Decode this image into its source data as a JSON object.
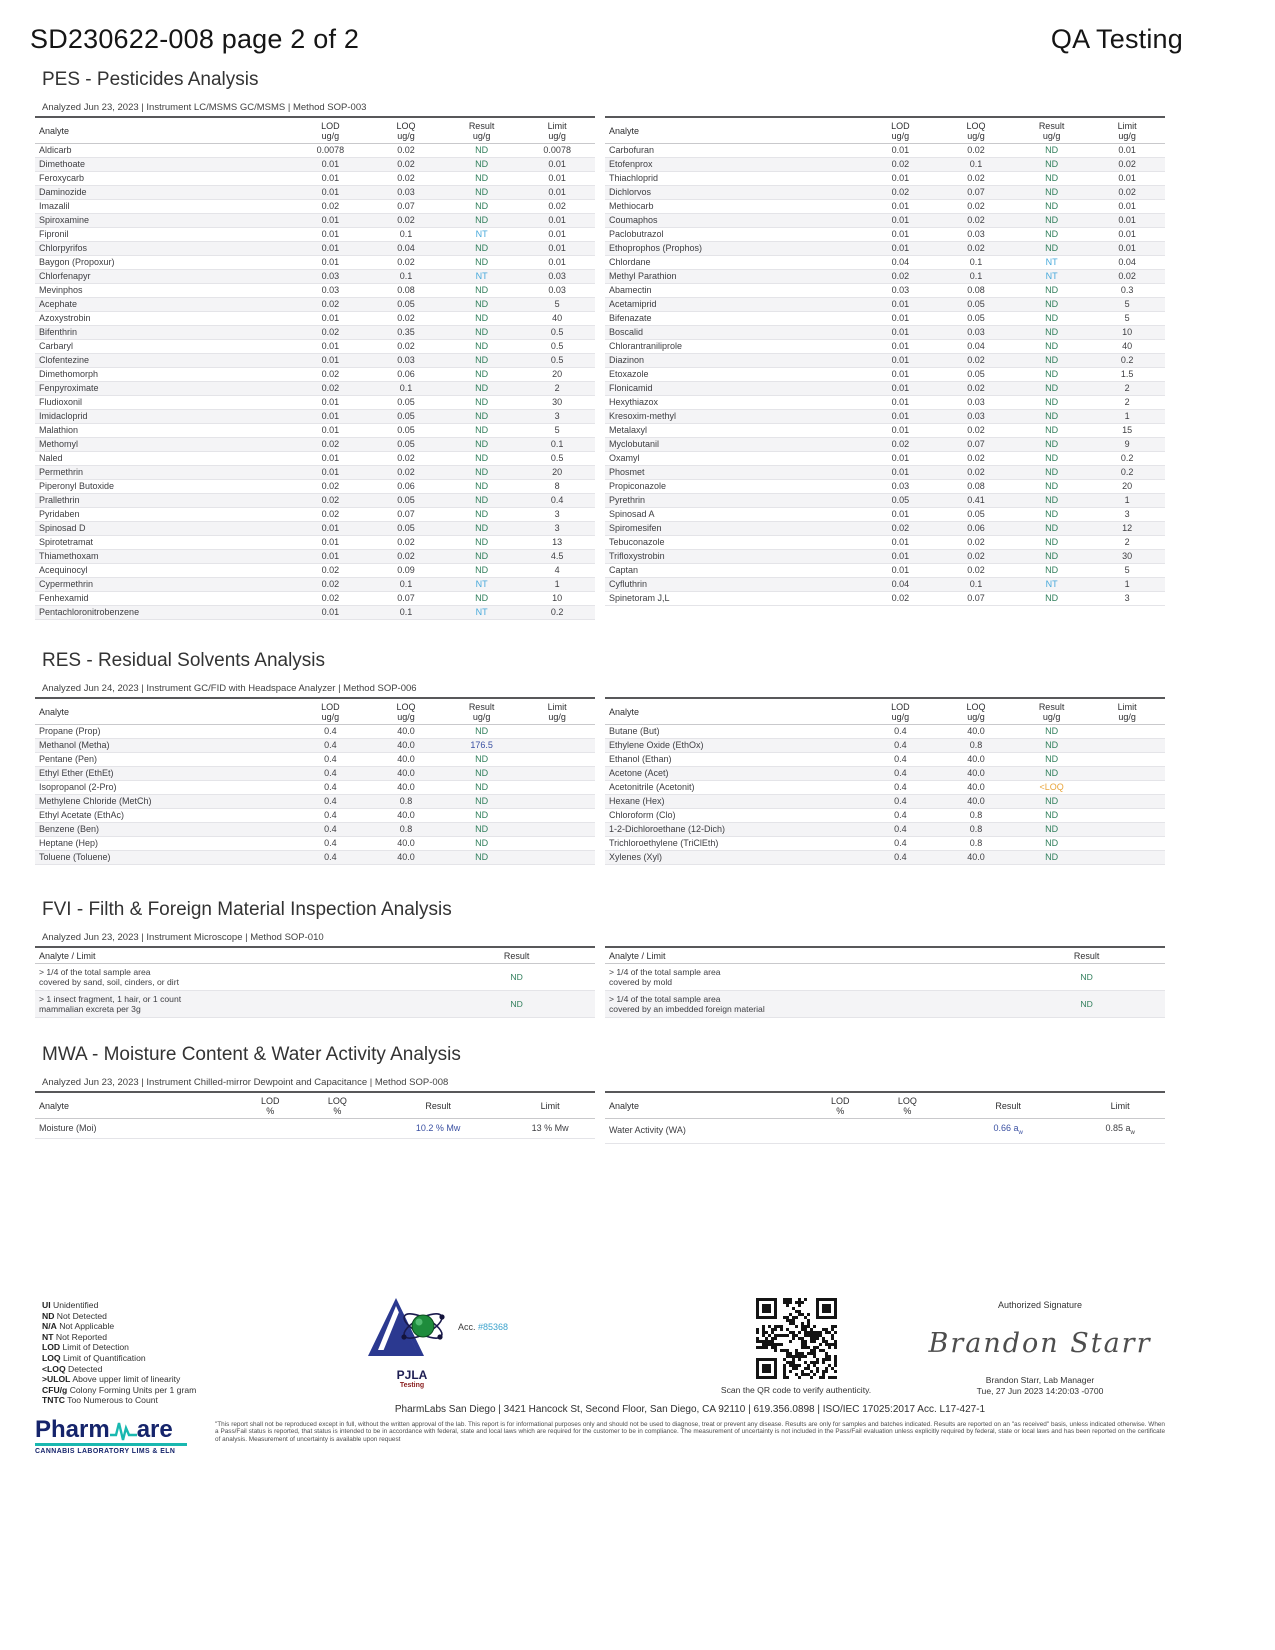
{
  "page": {
    "doc_title": "SD230622-008 page 2 of 2",
    "corner_title": "QA Testing"
  },
  "colors": {
    "nd_green": "#2F7E5B",
    "nt_blue": "#47A9DB",
    "value_blue": "#3A50A2",
    "loq_orange": "#E9A53C",
    "teal": "#19B8B0",
    "navy": "#15246B"
  },
  "pes": {
    "title": "PES - Pesticides Analysis",
    "meta": "Analyzed Jun 23, 2023  |  Instrument LC/MSMS GC/MSMS  | Method  SOP-003",
    "headers": {
      "analyte": "Analyte",
      "cols": [
        {
          "label": "LOD",
          "unit": "ug/g"
        },
        {
          "label": "LOQ",
          "unit": "ug/g"
        },
        {
          "label": "Result",
          "unit": "ug/g"
        },
        {
          "label": "Limit",
          "unit": "ug/g"
        }
      ]
    },
    "left": [
      [
        "Aldicarb",
        "0.0078",
        "0.02",
        "ND",
        "0.0078"
      ],
      [
        "Dimethoate",
        "0.01",
        "0.02",
        "ND",
        "0.01"
      ],
      [
        "Feroxycarb",
        "0.01",
        "0.02",
        "ND",
        "0.01"
      ],
      [
        "Daminozide",
        "0.01",
        "0.03",
        "ND",
        "0.01"
      ],
      [
        "Imazalil",
        "0.02",
        "0.07",
        "ND",
        "0.02"
      ],
      [
        "Spiroxamine",
        "0.01",
        "0.02",
        "ND",
        "0.01"
      ],
      [
        "Fipronil",
        "0.01",
        "0.1",
        "NT",
        "0.01"
      ],
      [
        "Chlorpyrifos",
        "0.01",
        "0.04",
        "ND",
        "0.01"
      ],
      [
        "Baygon (Propoxur)",
        "0.01",
        "0.02",
        "ND",
        "0.01"
      ],
      [
        "Chlorfenapyr",
        "0.03",
        "0.1",
        "NT",
        "0.03"
      ],
      [
        "Mevinphos",
        "0.03",
        "0.08",
        "ND",
        "0.03"
      ],
      [
        "Acephate",
        "0.02",
        "0.05",
        "ND",
        "5"
      ],
      [
        "Azoxystrobin",
        "0.01",
        "0.02",
        "ND",
        "40"
      ],
      [
        "Bifenthrin",
        "0.02",
        "0.35",
        "ND",
        "0.5"
      ],
      [
        "Carbaryl",
        "0.01",
        "0.02",
        "ND",
        "0.5"
      ],
      [
        "Clofentezine",
        "0.01",
        "0.03",
        "ND",
        "0.5"
      ],
      [
        "Dimethomorph",
        "0.02",
        "0.06",
        "ND",
        "20"
      ],
      [
        "Fenpyroximate",
        "0.02",
        "0.1",
        "ND",
        "2"
      ],
      [
        "Fludioxonil",
        "0.01",
        "0.05",
        "ND",
        "30"
      ],
      [
        "Imidacloprid",
        "0.01",
        "0.05",
        "ND",
        "3"
      ],
      [
        "Malathion",
        "0.01",
        "0.05",
        "ND",
        "5"
      ],
      [
        "Methomyl",
        "0.02",
        "0.05",
        "ND",
        "0.1"
      ],
      [
        "Naled",
        "0.01",
        "0.02",
        "ND",
        "0.5"
      ],
      [
        "Permethrin",
        "0.01",
        "0.02",
        "ND",
        "20"
      ],
      [
        "Piperonyl Butoxide",
        "0.02",
        "0.06",
        "ND",
        "8"
      ],
      [
        "Prallethrin",
        "0.02",
        "0.05",
        "ND",
        "0.4"
      ],
      [
        "Pyridaben",
        "0.02",
        "0.07",
        "ND",
        "3"
      ],
      [
        "Spinosad D",
        "0.01",
        "0.05",
        "ND",
        "3"
      ],
      [
        "Spirotetramat",
        "0.01",
        "0.02",
        "ND",
        "13"
      ],
      [
        "Thiamethoxam",
        "0.01",
        "0.02",
        "ND",
        "4.5"
      ],
      [
        "Acequinocyl",
        "0.02",
        "0.09",
        "ND",
        "4"
      ],
      [
        "Cypermethrin",
        "0.02",
        "0.1",
        "NT",
        "1"
      ],
      [
        "Fenhexamid",
        "0.02",
        "0.07",
        "ND",
        "10"
      ],
      [
        "Pentachloronitrobenzene",
        "0.01",
        "0.1",
        "NT",
        "0.2"
      ]
    ],
    "right": [
      [
        "Carbofuran",
        "0.01",
        "0.02",
        "ND",
        "0.01"
      ],
      [
        "Etofenprox",
        "0.02",
        "0.1",
        "ND",
        "0.02"
      ],
      [
        "Thiachloprid",
        "0.01",
        "0.02",
        "ND",
        "0.01"
      ],
      [
        "Dichlorvos",
        "0.02",
        "0.07",
        "ND",
        "0.02"
      ],
      [
        "Methiocarb",
        "0.01",
        "0.02",
        "ND",
        "0.01"
      ],
      [
        "Coumaphos",
        "0.01",
        "0.02",
        "ND",
        "0.01"
      ],
      [
        "Paclobutrazol",
        "0.01",
        "0.03",
        "ND",
        "0.01"
      ],
      [
        "Ethoprophos (Prophos)",
        "0.01",
        "0.02",
        "ND",
        "0.01"
      ],
      [
        "Chlordane",
        "0.04",
        "0.1",
        "NT",
        "0.04"
      ],
      [
        "Methyl Parathion",
        "0.02",
        "0.1",
        "NT",
        "0.02"
      ],
      [
        "Abamectin",
        "0.03",
        "0.08",
        "ND",
        "0.3"
      ],
      [
        "Acetamiprid",
        "0.01",
        "0.05",
        "ND",
        "5"
      ],
      [
        "Bifenazate",
        "0.01",
        "0.05",
        "ND",
        "5"
      ],
      [
        "Boscalid",
        "0.01",
        "0.03",
        "ND",
        "10"
      ],
      [
        "Chlorantraniliprole",
        "0.01",
        "0.04",
        "ND",
        "40"
      ],
      [
        "Diazinon",
        "0.01",
        "0.02",
        "ND",
        "0.2"
      ],
      [
        "Etoxazole",
        "0.01",
        "0.05",
        "ND",
        "1.5"
      ],
      [
        "Flonicamid",
        "0.01",
        "0.02",
        "ND",
        "2"
      ],
      [
        "Hexythiazox",
        "0.01",
        "0.03",
        "ND",
        "2"
      ],
      [
        "Kresoxim-methyl",
        "0.01",
        "0.03",
        "ND",
        "1"
      ],
      [
        "Metalaxyl",
        "0.01",
        "0.02",
        "ND",
        "15"
      ],
      [
        "Myclobutanil",
        "0.02",
        "0.07",
        "ND",
        "9"
      ],
      [
        "Oxamyl",
        "0.01",
        "0.02",
        "ND",
        "0.2"
      ],
      [
        "Phosmet",
        "0.01",
        "0.02",
        "ND",
        "0.2"
      ],
      [
        "Propiconazole",
        "0.03",
        "0.08",
        "ND",
        "20"
      ],
      [
        "Pyrethrin",
        "0.05",
        "0.41",
        "ND",
        "1"
      ],
      [
        "Spinosad A",
        "0.01",
        "0.05",
        "ND",
        "3"
      ],
      [
        "Spiromesifen",
        "0.02",
        "0.06",
        "ND",
        "12"
      ],
      [
        "Tebuconazole",
        "0.01",
        "0.02",
        "ND",
        "2"
      ],
      [
        "Trifloxystrobin",
        "0.01",
        "0.02",
        "ND",
        "30"
      ],
      [
        "Captan",
        "0.01",
        "0.02",
        "ND",
        "5"
      ],
      [
        "Cyfluthrin",
        "0.04",
        "0.1",
        "NT",
        "1"
      ],
      [
        "Spinetoram J,L",
        "0.02",
        "0.07",
        "ND",
        "3"
      ]
    ]
  },
  "res": {
    "title": "RES - Residual Solvents Analysis",
    "meta": "Analyzed Jun 24, 2023  |  Instrument GC/FID with Headspace Analyzer  | Method SOP-006",
    "headers": {
      "analyte": "Analyte",
      "cols": [
        {
          "label": "LOD",
          "unit": "ug/g"
        },
        {
          "label": "LOQ",
          "unit": "ug/g"
        },
        {
          "label": "Result",
          "unit": "ug/g"
        },
        {
          "label": "Limit",
          "unit": "ug/g"
        }
      ]
    },
    "left": [
      [
        "Propane (Prop)",
        "0.4",
        "40.0",
        "ND",
        ""
      ],
      [
        "Methanol (Metha)",
        "0.4",
        "40.0",
        "176.5",
        ""
      ],
      [
        "Pentane (Pen)",
        "0.4",
        "40.0",
        "ND",
        ""
      ],
      [
        "Ethyl Ether (EthEt)",
        "0.4",
        "40.0",
        "ND",
        ""
      ],
      [
        "Isopropanol (2-Pro)",
        "0.4",
        "40.0",
        "ND",
        ""
      ],
      [
        "Methylene Chloride (MetCh)",
        "0.4",
        "0.8",
        "ND",
        ""
      ],
      [
        "Ethyl Acetate (EthAc)",
        "0.4",
        "40.0",
        "ND",
        ""
      ],
      [
        "Benzene (Ben)",
        "0.4",
        "0.8",
        "ND",
        ""
      ],
      [
        "Heptane (Hep)",
        "0.4",
        "40.0",
        "ND",
        ""
      ],
      [
        "Toluene (Toluene)",
        "0.4",
        "40.0",
        "ND",
        ""
      ]
    ],
    "right": [
      [
        "Butane (But)",
        "0.4",
        "40.0",
        "ND",
        ""
      ],
      [
        "Ethylene Oxide (EthOx)",
        "0.4",
        "0.8",
        "ND",
        ""
      ],
      [
        "Ethanol (Ethan)",
        "0.4",
        "40.0",
        "ND",
        ""
      ],
      [
        "Acetone (Acet)",
        "0.4",
        "40.0",
        "ND",
        ""
      ],
      [
        "Acetonitrile (Acetonit)",
        "0.4",
        "40.0",
        "<LOQ",
        ""
      ],
      [
        "Hexane (Hex)",
        "0.4",
        "40.0",
        "ND",
        ""
      ],
      [
        "Chloroform (Clo)",
        "0.4",
        "0.8",
        "ND",
        ""
      ],
      [
        "1-2-Dichloroethane (12-Dich)",
        "0.4",
        "0.8",
        "ND",
        ""
      ],
      [
        "Trichloroethylene (TriClEth)",
        "0.4",
        "0.8",
        "ND",
        ""
      ],
      [
        "Xylenes (Xyl)",
        "0.4",
        "40.0",
        "ND",
        ""
      ]
    ]
  },
  "fvi": {
    "title": "FVI - Filth & Foreign Material Inspection Analysis",
    "meta": "Analyzed Jun 23, 2023  |  Instrument Microscope  | Method SOP-010",
    "headers": {
      "analyte": "Analyte / Limit",
      "result": "Result"
    },
    "left": [
      {
        "lines": [
          "> 1/4 of the total sample area",
          "covered by sand, soil, cinders, or dirt"
        ],
        "result": "ND"
      },
      {
        "lines": [
          "> 1 insect fragment, 1 hair, or 1 count",
          "mammalian excreta per 3g"
        ],
        "result": "ND"
      }
    ],
    "right": [
      {
        "lines": [
          "> 1/4 of the total sample area",
          "covered by mold"
        ],
        "result": "ND"
      },
      {
        "lines": [
          "> 1/4 of the total sample area",
          "covered by an imbedded foreign material"
        ],
        "result": "ND"
      }
    ]
  },
  "mwa": {
    "title": "MWA - Moisture Content & Water Activity Analysis",
    "meta": "Analyzed Jun 23, 2023  |  Instrument Chilled-mirror Dewpoint and Capacitance  | Method SOP-008",
    "headers": {
      "analyte": "Analyte",
      "cols": [
        {
          "label": "LOD",
          "unit": "%"
        },
        {
          "label": "LOQ",
          "unit": "%"
        },
        {
          "label": "Result",
          "unit": ""
        },
        {
          "label": "Limit",
          "unit": ""
        }
      ]
    },
    "left": [
      {
        "name": "Moisture (Moi)",
        "lod": "",
        "loq": "",
        "result": "10.2 % Mw",
        "limit": "13 % Mw"
      }
    ],
    "right": [
      {
        "name": "Water Activity (WA)",
        "lod": "",
        "loq": "",
        "result": "0.66 a",
        "result_sub": "w",
        "limit": "0.85 a",
        "limit_sub": "w"
      }
    ]
  },
  "footer": {
    "legend": [
      {
        "code": "UI",
        "desc": "Unidentified"
      },
      {
        "code": "ND",
        "desc": "Not Detected"
      },
      {
        "code": "N/A",
        "desc": "Not Applicable"
      },
      {
        "code": "NT",
        "desc": "Not Reported"
      },
      {
        "code": "LOD",
        "desc": "Limit of Detection"
      },
      {
        "code": "LOQ",
        "desc": "Limit of Quantification"
      },
      {
        "code": "<LOQ",
        "desc": "Detected"
      },
      {
        "code": ">ULOL",
        "desc": "Above upper limit of linearity"
      },
      {
        "code": "CFU/g",
        "desc": "Colony Forming Units per 1 gram"
      },
      {
        "code": "TNTC",
        "desc": "Too Numerous to Count"
      }
    ],
    "pjla": {
      "name": "PJLA",
      "sub": "Testing",
      "acc_prefix": "Acc. ",
      "acc_number": "#85368"
    },
    "qr_caption": "Scan the QR code to verify authenticity.",
    "signature": {
      "label": "Authorized Signature",
      "script": "Brandon  Starr",
      "name": "Brandon Starr, Lab Manager",
      "date": "Tue, 27 Jun 2023 14:20:03 -0700"
    },
    "address": "PharmLabs San Diego | 3421 Hancock St, Second Floor, San Diego, CA 92110 | 619.356.0898 | ISO/IEC 17025:2017  Acc. L17-427-1",
    "disclaimer": "\"This report shall not be reproduced except in full, without the written approval of the lab. This report is for informational purposes only and should not be used to diagnose, treat or prevent any disease. Results are only for samples and batches indicated. Results are reported on an \"as received\" basis, unless indicated otherwise. When a Pass/Fail status is reported, that status is intended to be in accordance with federal, state and local laws which are required for the customer to be in compliance. The measurement of uncertainty is not included in the Pass/Fail evaluation unless explicitly required by federal, state or local laws and has been reported on the certificate of analysis. Measurement of uncertainty is available upon request",
    "pharmware": {
      "name_a": "Pharm",
      "name_b": "are",
      "caps": "CANNABIS LABORATORY LIMS & ELN"
    }
  }
}
